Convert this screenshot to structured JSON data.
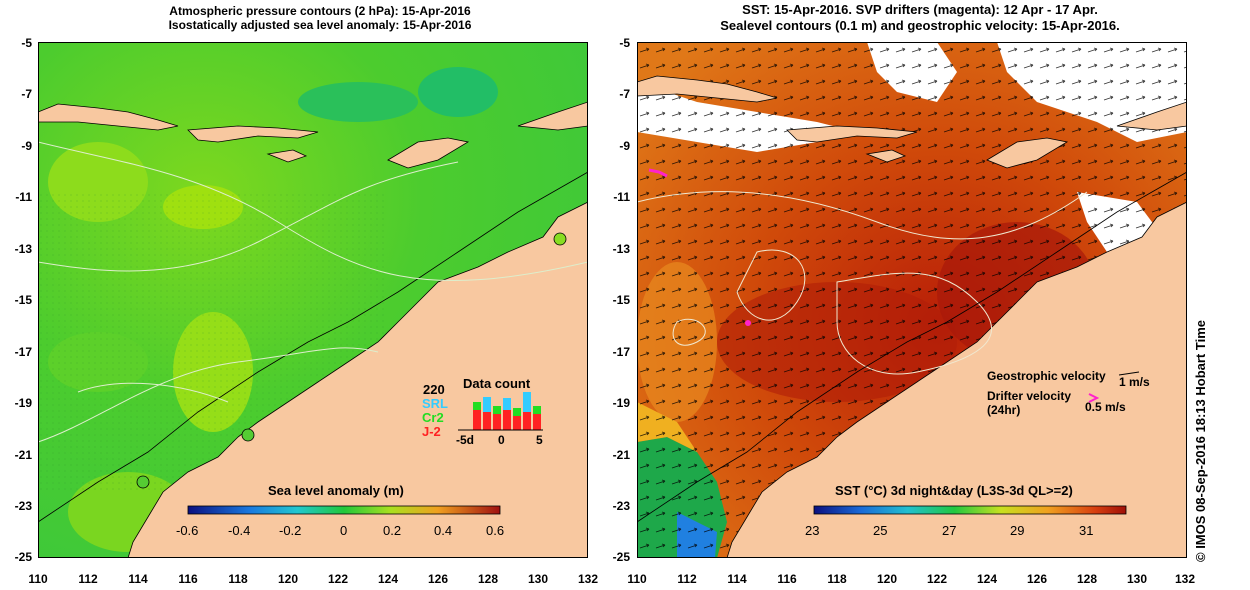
{
  "left_panel": {
    "title_line1": "Atmospheric pressure contours (2 hPa): 15-Apr-2016",
    "title_line2": "Isostatically adjusted sea level anomaly: 15-Apr-2016",
    "y_ticks": [
      "-5",
      "-7",
      "-9",
      "-11",
      "-13",
      "-15",
      "-17",
      "-19",
      "-21",
      "-23",
      "-25"
    ],
    "x_ticks": [
      "110",
      "112",
      "114",
      "116",
      "118",
      "120",
      "122",
      "124",
      "126",
      "128",
      "130",
      "132"
    ],
    "colorbar": {
      "title": "Sea level anomaly (m)",
      "ticks": [
        "-0.6",
        "-0.4",
        "-0.2",
        "0",
        "0.2",
        "0.4",
        "0.6"
      ]
    },
    "data_count": {
      "count": "220",
      "title": "Data count",
      "missions": [
        "SRL",
        "Cr2",
        "J-2"
      ],
      "mission_colors": [
        "#33ccff",
        "#22dd22",
        "#ff2222"
      ],
      "axis_ticks": [
        "-5d",
        "0",
        "5"
      ]
    }
  },
  "right_panel": {
    "title_line1": "SST: 15-Apr-2016. SVP drifters (magenta): 12 Apr - 17 Apr.",
    "title_line2": "Sealevel contours (0.1 m) and geostrophic velocity: 15-Apr-2016.",
    "y_ticks": [
      "-5",
      "-7",
      "-9",
      "-11",
      "-13",
      "-15",
      "-17",
      "-19",
      "-21",
      "-23",
      "-25"
    ],
    "x_ticks": [
      "110",
      "112",
      "114",
      "116",
      "118",
      "120",
      "122",
      "124",
      "126",
      "128",
      "130",
      "132"
    ],
    "colorbar": {
      "title": "SST (°C) 3d night&day (L3S-3d QL>=2)",
      "ticks": [
        "23",
        "25",
        "27",
        "29",
        "31"
      ]
    },
    "legend": {
      "geostrophic_label": "Geostrophic velocity",
      "geostrophic_scale": "1 m/s",
      "drifter_label_1": "Drifter velocity",
      "drifter_label_2": "(24hr)",
      "drifter_scale": "0.5 m/s"
    }
  },
  "footer": "© IMOS 08-Sep-2016 18:13 Hobart Time",
  "colors": {
    "land": "#f8c8a0",
    "sst_warm": "#c83a0a",
    "sst_mid": "#e8781a",
    "sla_green": "#44cc33",
    "sla_light": "#88dd22",
    "drifter": "#ff22cc"
  }
}
